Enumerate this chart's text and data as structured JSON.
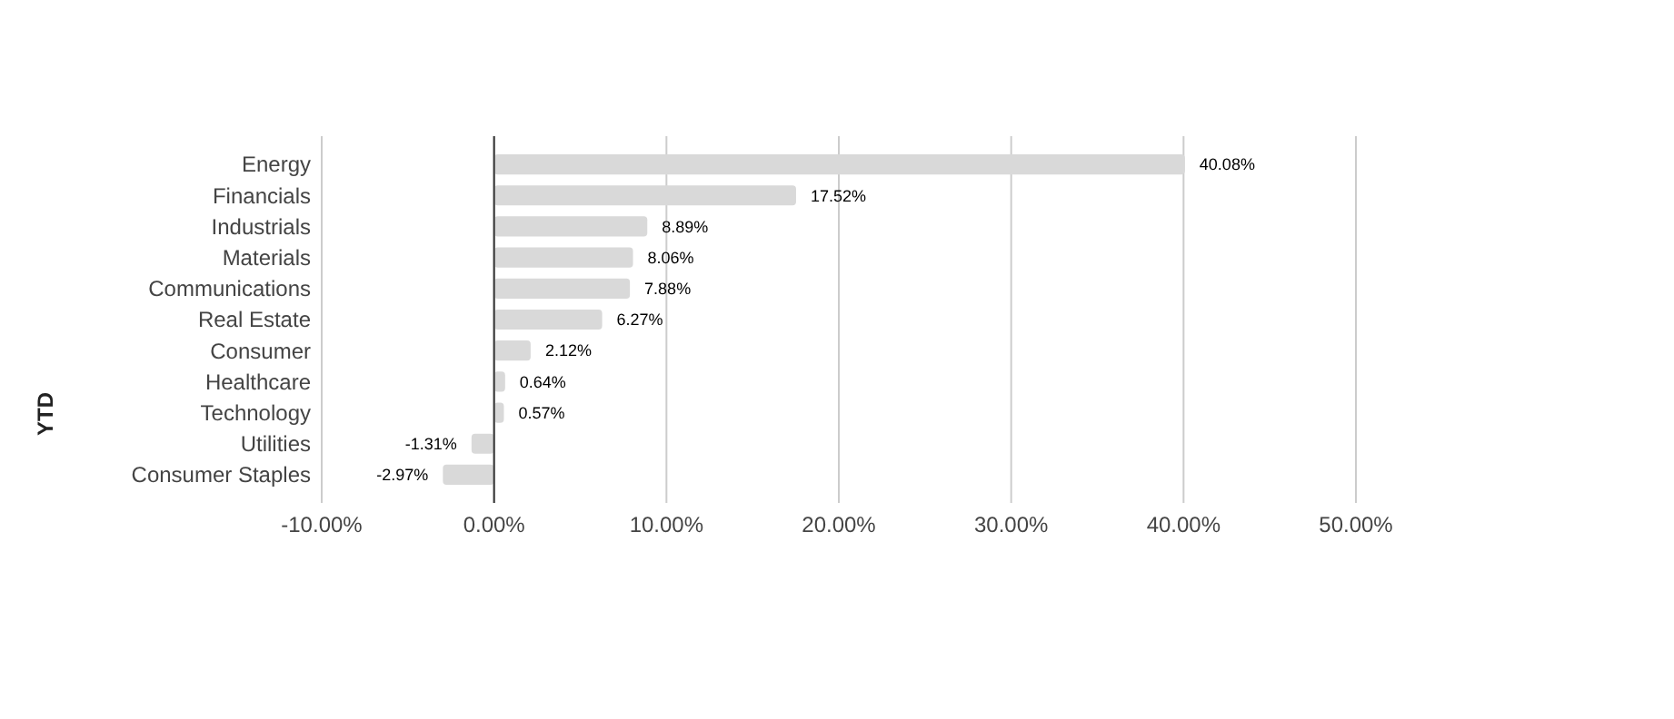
{
  "chart_data": {
    "type": "bar",
    "orientation": "horizontal",
    "ylabel": "YTD",
    "categories": [
      "Energy",
      "Financials",
      "Industrials",
      "Materials",
      "Communications",
      "Real Estate",
      "Consumer",
      "Healthcare",
      "Technology",
      "Utilities",
      "Consumer Staples"
    ],
    "values": [
      40.08,
      17.52,
      8.89,
      8.06,
      7.88,
      6.27,
      2.12,
      0.64,
      0.57,
      -1.31,
      -2.97
    ],
    "value_labels": [
      "40.08%",
      "17.52%",
      "8.89%",
      "8.06%",
      "7.88%",
      "6.27%",
      "2.12%",
      "0.64%",
      "0.57%",
      "-1.31%",
      "-2.97%"
    ],
    "color": "#d9d9d9",
    "xlim": [
      -10,
      50
    ],
    "xticks": [
      {
        "value": -10,
        "label": "-10.00%"
      },
      {
        "value": 0,
        "label": "0.00%"
      },
      {
        "value": 10,
        "label": "10.00%"
      },
      {
        "value": 20,
        "label": "20.00%"
      },
      {
        "value": 30,
        "label": "30.00%"
      },
      {
        "value": 40,
        "label": "40.00%"
      },
      {
        "value": 50,
        "label": "50.00%"
      }
    ],
    "grid": "x"
  }
}
